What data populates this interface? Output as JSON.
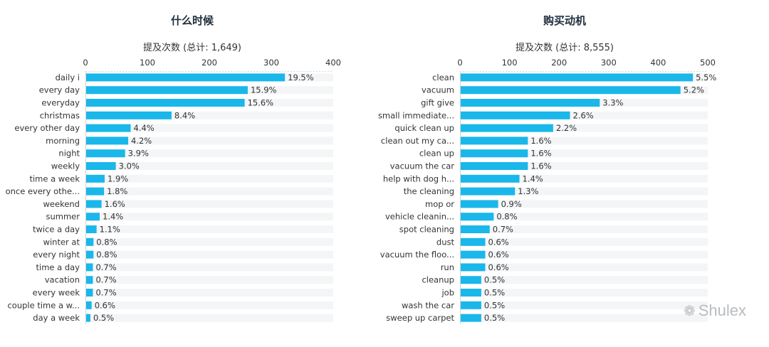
{
  "chart_data": [
    {
      "type": "bar",
      "orientation": "horizontal",
      "title": "什么时候",
      "xlabel": "提及次数 (总计: 1,649)",
      "xlim": [
        0,
        400
      ],
      "xticks": [
        0,
        100,
        200,
        300,
        400
      ],
      "bar_color": "#1ab7ea",
      "track_color": "#f4f5f7",
      "categories": [
        "daily i",
        "every day",
        "everyday",
        "christmas",
        "every other day",
        "morning",
        "night",
        "weekly",
        "time a week",
        "once every othe...",
        "weekend",
        "summer",
        "twice a day",
        "winter at",
        "every night",
        "time a day",
        "vacation",
        "every week",
        "couple time a w...",
        "day a week"
      ],
      "values": [
        322,
        262,
        257,
        139,
        73,
        69,
        64,
        49,
        31,
        30,
        26,
        23,
        18,
        13,
        13,
        12,
        12,
        12,
        10,
        8
      ],
      "labels": [
        "19.5%",
        "15.9%",
        "15.6%",
        "8.4%",
        "4.4%",
        "4.2%",
        "3.9%",
        "3.0%",
        "1.9%",
        "1.8%",
        "1.6%",
        "1.4%",
        "1.1%",
        "0.8%",
        "0.8%",
        "0.7%",
        "0.7%",
        "0.7%",
        "0.6%",
        "0.5%"
      ]
    },
    {
      "type": "bar",
      "orientation": "horizontal",
      "title": "购买动机",
      "xlabel": "提及次数 (总计: 8,555)",
      "xlim": [
        0,
        500
      ],
      "xticks": [
        0,
        100,
        200,
        300,
        400,
        500
      ],
      "bar_color": "#1ab7ea",
      "track_color": "#f4f5f7",
      "categories": [
        "clean",
        "vacuum",
        "gift give",
        "small immediate...",
        "quick clean up",
        "clean out my ca...",
        "clean up",
        "vacuum the car",
        "help with dog h...",
        "the cleaning",
        "mop or",
        "vehicle cleanin...",
        "spot cleaning",
        "dust",
        "vacuum the floo...",
        "run",
        "cleanup",
        "job",
        "wash the car",
        "sweep up carpet"
      ],
      "values": [
        470,
        445,
        282,
        222,
        188,
        137,
        137,
        137,
        120,
        111,
        77,
        68,
        60,
        51,
        51,
        51,
        43,
        43,
        43,
        43
      ],
      "labels": [
        "5.5%",
        "5.2%",
        "3.3%",
        "2.6%",
        "2.2%",
        "1.6%",
        "1.6%",
        "1.6%",
        "1.4%",
        "1.3%",
        "0.9%",
        "0.8%",
        "0.7%",
        "0.6%",
        "0.6%",
        "0.6%",
        "0.5%",
        "0.5%",
        "0.5%",
        "0.5%"
      ]
    }
  ],
  "watermark": {
    "text": "Shulex",
    "icon": "wechat-icon",
    "glyph": "❁"
  }
}
